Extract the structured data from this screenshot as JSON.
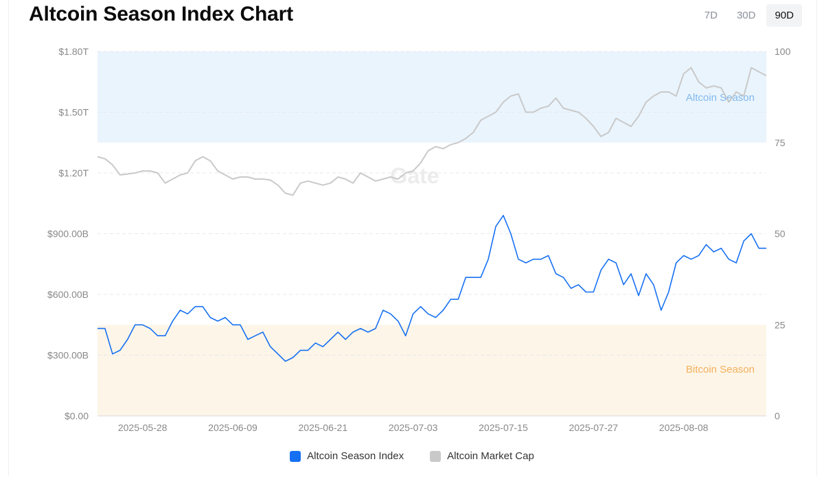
{
  "title": "Altcoin Season Index Chart",
  "ranges": [
    {
      "label": "7D",
      "active": false
    },
    {
      "label": "30D",
      "active": false
    },
    {
      "label": "90D",
      "active": true
    }
  ],
  "colors": {
    "index_line": "#1670f2",
    "market_cap_line": "#c9c9c9",
    "altcoin_zone": "#eaf4fd",
    "bitcoin_zone": "#fdf5e8",
    "altcoin_zone_label": "#80b9ee",
    "bitcoin_zone_label": "#f4b05c",
    "tick_text": "#888888",
    "watermark": "#ececec"
  },
  "watermark": "Gate",
  "chart_data": {
    "type": "line",
    "title": "Altcoin Season Index Chart",
    "x_axis": {
      "type": "date",
      "start": "2025-05-22",
      "end": "2025-08-19",
      "tick_labels": [
        "2025-05-28",
        "2025-06-09",
        "2025-06-21",
        "2025-07-03",
        "2025-07-15",
        "2025-07-27",
        "2025-08-08"
      ]
    },
    "y_axis_left": {
      "title": "",
      "range": [
        0,
        1.8
      ],
      "unit": "T",
      "tick_labels": [
        "$0.00",
        "$300.00B",
        "$600.00B",
        "$900.00B",
        "$1.20T",
        "$1.50T",
        "$1.80T"
      ]
    },
    "y_axis_right": {
      "title": "",
      "range": [
        0,
        100
      ],
      "tick_labels": [
        "0",
        "25",
        "50",
        "75",
        "100"
      ]
    },
    "zones": [
      {
        "label": "Altcoin Season",
        "axis": "right",
        "from": 75,
        "to": 100
      },
      {
        "label": "Bitcoin Season",
        "axis": "right",
        "from": 0,
        "to": 25
      }
    ],
    "grid": "horizontal dashed",
    "legend_position": "bottom",
    "series": [
      {
        "name": "Altcoin Season Index",
        "axis": "right",
        "values": [
          [
            "2025-05-22",
            24
          ],
          [
            "2025-05-23",
            24
          ],
          [
            "2025-05-24",
            17
          ],
          [
            "2025-05-25",
            18
          ],
          [
            "2025-05-26",
            21
          ],
          [
            "2025-05-27",
            25
          ],
          [
            "2025-05-28",
            25
          ],
          [
            "2025-05-29",
            24
          ],
          [
            "2025-05-30",
            22
          ],
          [
            "2025-05-31",
            22
          ],
          [
            "2025-06-01",
            26
          ],
          [
            "2025-06-02",
            29
          ],
          [
            "2025-06-03",
            28
          ],
          [
            "2025-06-04",
            30
          ],
          [
            "2025-06-05",
            30
          ],
          [
            "2025-06-06",
            27
          ],
          [
            "2025-06-07",
            26
          ],
          [
            "2025-06-08",
            27
          ],
          [
            "2025-06-09",
            25
          ],
          [
            "2025-06-10",
            25
          ],
          [
            "2025-06-11",
            21
          ],
          [
            "2025-06-12",
            22
          ],
          [
            "2025-06-13",
            23
          ],
          [
            "2025-06-14",
            19
          ],
          [
            "2025-06-15",
            17
          ],
          [
            "2025-06-16",
            15
          ],
          [
            "2025-06-17",
            16
          ],
          [
            "2025-06-18",
            18
          ],
          [
            "2025-06-19",
            18
          ],
          [
            "2025-06-20",
            20
          ],
          [
            "2025-06-21",
            19
          ],
          [
            "2025-06-22",
            21
          ],
          [
            "2025-06-23",
            23
          ],
          [
            "2025-06-24",
            21
          ],
          [
            "2025-06-25",
            23
          ],
          [
            "2025-06-26",
            24
          ],
          [
            "2025-06-27",
            23
          ],
          [
            "2025-06-28",
            24
          ],
          [
            "2025-06-29",
            29
          ],
          [
            "2025-06-30",
            28
          ],
          [
            "2025-07-01",
            26
          ],
          [
            "2025-07-02",
            22
          ],
          [
            "2025-07-03",
            28
          ],
          [
            "2025-07-04",
            30
          ],
          [
            "2025-07-05",
            28
          ],
          [
            "2025-07-06",
            27
          ],
          [
            "2025-07-07",
            29
          ],
          [
            "2025-07-08",
            32
          ],
          [
            "2025-07-09",
            32
          ],
          [
            "2025-07-10",
            38
          ],
          [
            "2025-07-11",
            38
          ],
          [
            "2025-07-12",
            38
          ],
          [
            "2025-07-13",
            43
          ],
          [
            "2025-07-14",
            52
          ],
          [
            "2025-07-15",
            55
          ],
          [
            "2025-07-16",
            50
          ],
          [
            "2025-07-17",
            43
          ],
          [
            "2025-07-18",
            42
          ],
          [
            "2025-07-19",
            43
          ],
          [
            "2025-07-20",
            43
          ],
          [
            "2025-07-21",
            44
          ],
          [
            "2025-07-22",
            39
          ],
          [
            "2025-07-23",
            38
          ],
          [
            "2025-07-24",
            35
          ],
          [
            "2025-07-25",
            36
          ],
          [
            "2025-07-26",
            34
          ],
          [
            "2025-07-27",
            34
          ],
          [
            "2025-07-28",
            40
          ],
          [
            "2025-07-29",
            43
          ],
          [
            "2025-07-30",
            42
          ],
          [
            "2025-07-31",
            36
          ],
          [
            "2025-08-01",
            39
          ],
          [
            "2025-08-02",
            33
          ],
          [
            "2025-08-03",
            39
          ],
          [
            "2025-08-04",
            36
          ],
          [
            "2025-08-05",
            29
          ],
          [
            "2025-08-06",
            34
          ],
          [
            "2025-08-07",
            42
          ],
          [
            "2025-08-08",
            44
          ],
          [
            "2025-08-09",
            43
          ],
          [
            "2025-08-10",
            44
          ],
          [
            "2025-08-11",
            47
          ],
          [
            "2025-08-12",
            45
          ],
          [
            "2025-08-13",
            46
          ],
          [
            "2025-08-14",
            43
          ],
          [
            "2025-08-15",
            42
          ],
          [
            "2025-08-16",
            48
          ],
          [
            "2025-08-17",
            50
          ],
          [
            "2025-08-18",
            46
          ],
          [
            "2025-08-19",
            46
          ]
        ]
      },
      {
        "name": "Altcoin Market Cap",
        "axis": "left",
        "unit": "T",
        "values": [
          [
            "2025-05-22",
            1.28
          ],
          [
            "2025-05-23",
            1.27
          ],
          [
            "2025-05-24",
            1.24
          ],
          [
            "2025-05-25",
            1.19
          ],
          [
            "2025-05-26",
            1.195
          ],
          [
            "2025-05-27",
            1.2
          ],
          [
            "2025-05-28",
            1.21
          ],
          [
            "2025-05-29",
            1.21
          ],
          [
            "2025-05-30",
            1.2
          ],
          [
            "2025-05-31",
            1.15
          ],
          [
            "2025-06-01",
            1.17
          ],
          [
            "2025-06-02",
            1.19
          ],
          [
            "2025-06-03",
            1.2
          ],
          [
            "2025-06-04",
            1.26
          ],
          [
            "2025-06-05",
            1.28
          ],
          [
            "2025-06-06",
            1.26
          ],
          [
            "2025-06-07",
            1.21
          ],
          [
            "2025-06-08",
            1.19
          ],
          [
            "2025-06-09",
            1.17
          ],
          [
            "2025-06-10",
            1.18
          ],
          [
            "2025-06-11",
            1.18
          ],
          [
            "2025-06-12",
            1.17
          ],
          [
            "2025-06-13",
            1.17
          ],
          [
            "2025-06-14",
            1.165
          ],
          [
            "2025-06-15",
            1.14
          ],
          [
            "2025-06-16",
            1.1
          ],
          [
            "2025-06-17",
            1.09
          ],
          [
            "2025-06-18",
            1.15
          ],
          [
            "2025-06-19",
            1.16
          ],
          [
            "2025-06-20",
            1.15
          ],
          [
            "2025-06-21",
            1.14
          ],
          [
            "2025-06-22",
            1.15
          ],
          [
            "2025-06-23",
            1.18
          ],
          [
            "2025-06-24",
            1.17
          ],
          [
            "2025-06-25",
            1.15
          ],
          [
            "2025-06-26",
            1.2
          ],
          [
            "2025-06-27",
            1.18
          ],
          [
            "2025-06-28",
            1.16
          ],
          [
            "2025-06-29",
            1.17
          ],
          [
            "2025-06-30",
            1.18
          ],
          [
            "2025-07-01",
            1.17
          ],
          [
            "2025-07-02",
            1.2
          ],
          [
            "2025-07-03",
            1.21
          ],
          [
            "2025-07-04",
            1.25
          ],
          [
            "2025-07-05",
            1.31
          ],
          [
            "2025-07-06",
            1.33
          ],
          [
            "2025-07-07",
            1.32
          ],
          [
            "2025-07-08",
            1.34
          ],
          [
            "2025-07-09",
            1.35
          ],
          [
            "2025-07-10",
            1.37
          ],
          [
            "2025-07-11",
            1.4
          ],
          [
            "2025-07-12",
            1.46
          ],
          [
            "2025-07-13",
            1.48
          ],
          [
            "2025-07-14",
            1.5
          ],
          [
            "2025-07-15",
            1.55
          ],
          [
            "2025-07-16",
            1.58
          ],
          [
            "2025-07-17",
            1.59
          ],
          [
            "2025-07-18",
            1.5
          ],
          [
            "2025-07-19",
            1.5
          ],
          [
            "2025-07-20",
            1.52
          ],
          [
            "2025-07-21",
            1.53
          ],
          [
            "2025-07-22",
            1.57
          ],
          [
            "2025-07-23",
            1.52
          ],
          [
            "2025-07-24",
            1.51
          ],
          [
            "2025-07-25",
            1.5
          ],
          [
            "2025-07-26",
            1.47
          ],
          [
            "2025-07-27",
            1.43
          ],
          [
            "2025-07-28",
            1.38
          ],
          [
            "2025-07-29",
            1.4
          ],
          [
            "2025-07-30",
            1.47
          ],
          [
            "2025-07-31",
            1.45
          ],
          [
            "2025-08-01",
            1.43
          ],
          [
            "2025-08-02",
            1.48
          ],
          [
            "2025-08-03",
            1.55
          ],
          [
            "2025-08-04",
            1.58
          ],
          [
            "2025-08-05",
            1.6
          ],
          [
            "2025-08-06",
            1.6
          ],
          [
            "2025-08-07",
            1.58
          ],
          [
            "2025-08-08",
            1.69
          ],
          [
            "2025-08-09",
            1.72
          ],
          [
            "2025-08-10",
            1.65
          ],
          [
            "2025-08-11",
            1.62
          ],
          [
            "2025-08-12",
            1.63
          ],
          [
            "2025-08-13",
            1.62
          ],
          [
            "2025-08-14",
            1.55
          ],
          [
            "2025-08-15",
            1.6
          ],
          [
            "2025-08-16",
            1.58
          ],
          [
            "2025-08-17",
            1.72
          ],
          [
            "2025-08-18",
            1.7
          ],
          [
            "2025-08-19",
            1.68
          ]
        ]
      }
    ]
  }
}
